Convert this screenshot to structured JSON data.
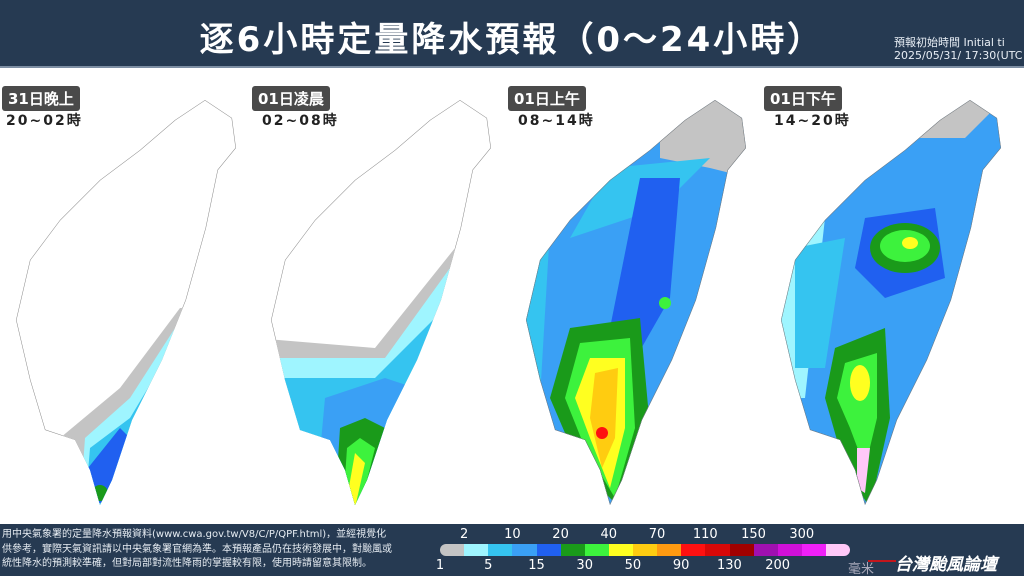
{
  "header": {
    "title": "逐6小時定量降水預報（0～24小時）",
    "init_label": "預報初始時間 Initial ti",
    "init_time": "2025/05/31/ 17:30(UTC"
  },
  "panels": [
    {
      "date": "31日晚上",
      "time": "20~02時"
    },
    {
      "date": "01日凌晨",
      "time": "02~08時"
    },
    {
      "date": "01日上午",
      "time": "08~14時"
    },
    {
      "date": "01日下午",
      "time": "14~20時"
    }
  ],
  "footer": {
    "note_lines": [
      "用中央氣象署的定量降水預報資料(www.cwa.gov.tw/V8/C/P/QPF.html)，並經視覺化",
      "供參考，實際天氣資訊請以中央氣象署官網為準。本預報產品仍在技術發展中，對颱風或",
      "統性降水的預測較準確，但對局部對流性降雨的掌握較有限，使用時請留意其限制。"
    ],
    "legend_top": [
      "2",
      "10",
      "20",
      "40",
      "70",
      "110",
      "150",
      "300"
    ],
    "legend_bottom": [
      "1",
      "5",
      "15",
      "30",
      "50",
      "90",
      "130",
      "200"
    ],
    "unit": "毫米",
    "colors": [
      "#c4c4c4",
      "#9ff5ff",
      "#35c4f0",
      "#3aa0f5",
      "#2060f0",
      "#1a9a1a",
      "#3df23d",
      "#ffff20",
      "#ffcc10",
      "#ff9a10",
      "#ff1010",
      "#d80808",
      "#a00000",
      "#a010b0",
      "#d010d8",
      "#f020f8",
      "#ffc8f8"
    ],
    "logo": "台灣颱風論壇"
  }
}
